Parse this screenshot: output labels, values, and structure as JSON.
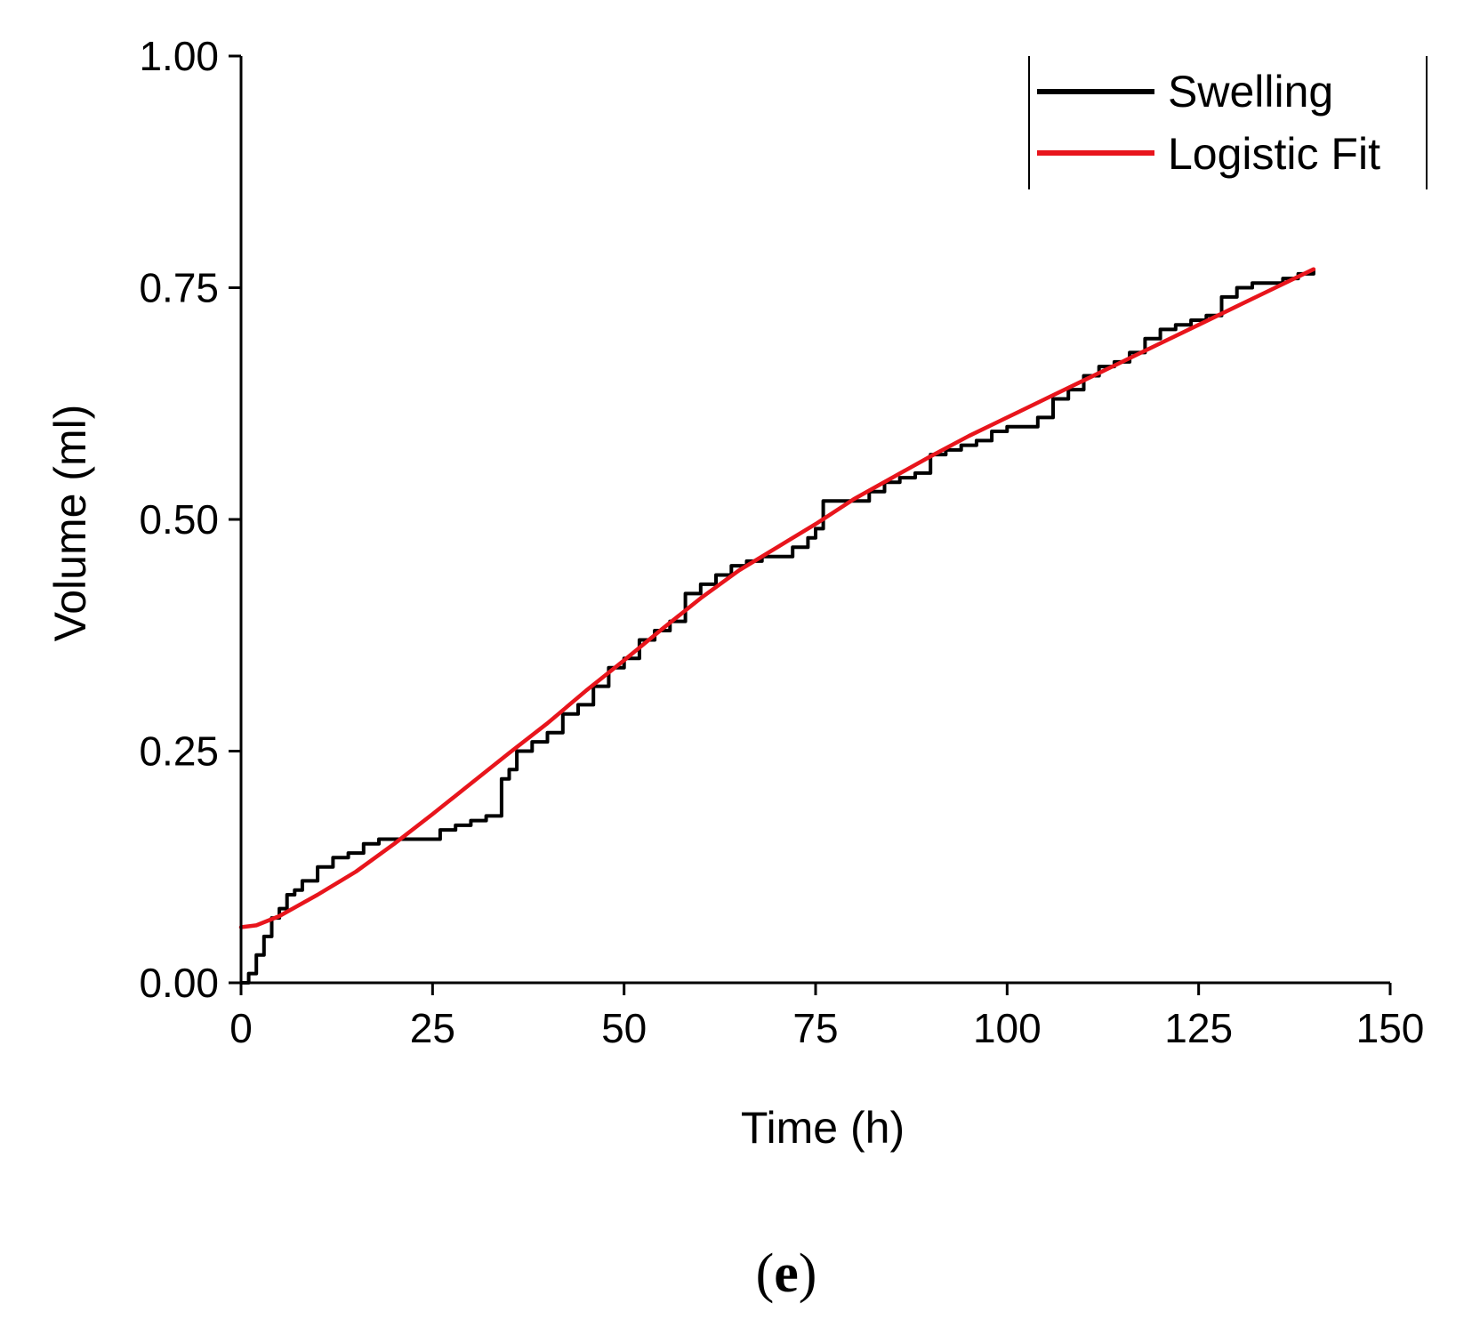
{
  "chart_data": {
    "type": "line",
    "xlabel": "Time (h)",
    "ylabel": "Volume (ml)",
    "xlim": [
      0,
      150
    ],
    "ylim": [
      0,
      1
    ],
    "xticks": [
      "0",
      "25",
      "50",
      "75",
      "100",
      "125",
      "150"
    ],
    "yticks": [
      "0.00",
      "0.25",
      "0.50",
      "0.75",
      "1.00"
    ],
    "legend_position": "top-right",
    "grid": false,
    "panel_label": {
      "open": "(",
      "letter": "e",
      "close": ")"
    },
    "series": [
      {
        "name": "Swelling",
        "color": "#000000",
        "style": "step",
        "x": [
          0,
          1,
          2,
          3,
          4,
          5,
          6,
          7,
          8,
          10,
          12,
          14,
          16,
          18,
          20,
          22,
          24,
          26,
          28,
          30,
          32,
          34,
          35,
          36,
          38,
          40,
          42,
          44,
          46,
          48,
          50,
          52,
          54,
          56,
          58,
          60,
          62,
          64,
          66,
          68,
          70,
          72,
          74,
          75,
          76,
          78,
          80,
          82,
          84,
          86,
          88,
          90,
          92,
          94,
          96,
          98,
          100,
          102,
          104,
          106,
          108,
          110,
          112,
          114,
          116,
          118,
          120,
          122,
          124,
          126,
          128,
          130,
          132,
          134,
          136,
          138,
          140
        ],
        "y": [
          0.0,
          0.01,
          0.03,
          0.05,
          0.07,
          0.08,
          0.095,
          0.1,
          0.11,
          0.125,
          0.135,
          0.14,
          0.15,
          0.155,
          0.155,
          0.155,
          0.155,
          0.165,
          0.17,
          0.175,
          0.18,
          0.22,
          0.23,
          0.25,
          0.26,
          0.27,
          0.29,
          0.3,
          0.32,
          0.34,
          0.35,
          0.37,
          0.38,
          0.39,
          0.42,
          0.43,
          0.44,
          0.45,
          0.455,
          0.46,
          0.46,
          0.47,
          0.48,
          0.49,
          0.52,
          0.52,
          0.52,
          0.53,
          0.54,
          0.545,
          0.55,
          0.57,
          0.575,
          0.58,
          0.585,
          0.595,
          0.6,
          0.6,
          0.61,
          0.63,
          0.64,
          0.655,
          0.665,
          0.67,
          0.68,
          0.695,
          0.705,
          0.71,
          0.715,
          0.72,
          0.74,
          0.75,
          0.755,
          0.755,
          0.76,
          0.765,
          0.77
        ]
      },
      {
        "name": "Logistic Fit",
        "color": "#e8151c",
        "style": "smooth",
        "x": [
          0,
          2,
          5,
          10,
          15,
          20,
          25,
          30,
          35,
          40,
          45,
          50,
          55,
          60,
          65,
          70,
          75,
          80,
          85,
          90,
          95,
          100,
          105,
          110,
          115,
          120,
          125,
          130,
          135,
          140
        ],
        "y": [
          0.06,
          0.062,
          0.072,
          0.095,
          0.12,
          0.15,
          0.182,
          0.215,
          0.248,
          0.28,
          0.315,
          0.348,
          0.382,
          0.415,
          0.445,
          0.47,
          0.495,
          0.522,
          0.545,
          0.568,
          0.59,
          0.61,
          0.63,
          0.65,
          0.67,
          0.69,
          0.71,
          0.73,
          0.75,
          0.77
        ]
      }
    ]
  }
}
